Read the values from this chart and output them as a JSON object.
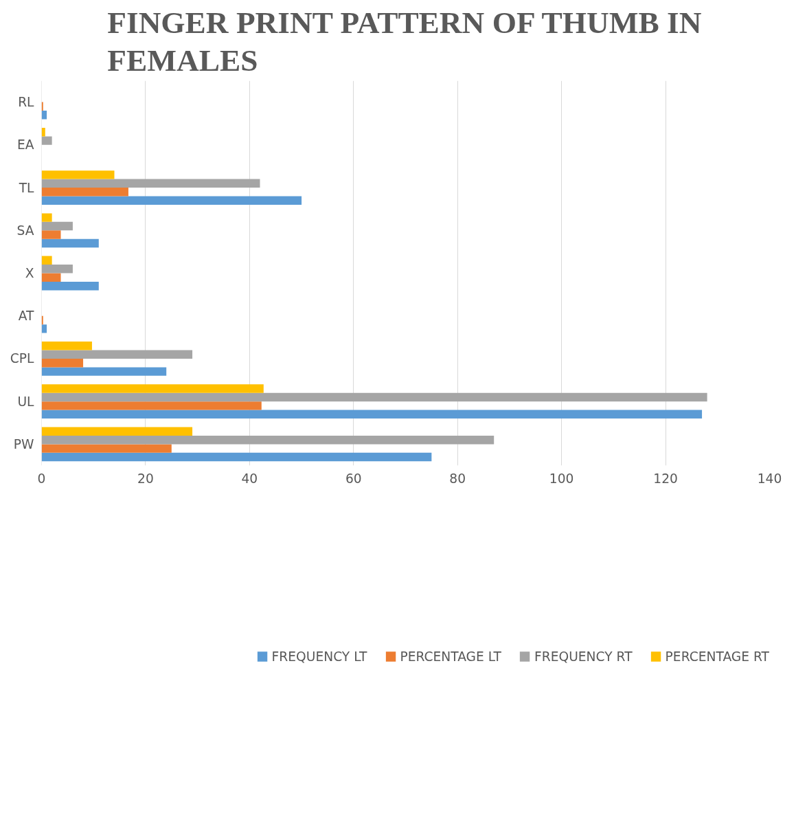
{
  "chart_data": {
    "type": "bar",
    "orientation": "horizontal",
    "title": "FINGER PRINT PATTERN OF THUMB IN FEMALES",
    "categories": [
      "RL",
      "EA",
      "TL",
      "SA",
      "X",
      "AT",
      "CPL",
      "UL",
      "PW"
    ],
    "series": [
      {
        "name": "FREQUENCY LT",
        "color": "#5b9bd5",
        "values": [
          1,
          0,
          50,
          11,
          11,
          1,
          24,
          127,
          75
        ]
      },
      {
        "name": "PERCENTAGE LT",
        "color": "#ed7d31",
        "values": [
          0.3,
          0,
          16.7,
          3.7,
          3.7,
          0.3,
          8,
          42.3,
          25
        ]
      },
      {
        "name": "FREQUENCY RT",
        "color": "#a5a5a5",
        "values": [
          0,
          2,
          42,
          6,
          6,
          0,
          29,
          128,
          87
        ]
      },
      {
        "name": "PERCENTAGE RT",
        "color": "#ffc000",
        "values": [
          0,
          0.7,
          14,
          2,
          2,
          0,
          9.7,
          42.7,
          29
        ]
      }
    ],
    "xlim": [
      0,
      140
    ],
    "xticks": [
      0,
      20,
      40,
      60,
      80,
      100,
      120,
      140
    ],
    "grid": "x",
    "legend": "bottom"
  }
}
